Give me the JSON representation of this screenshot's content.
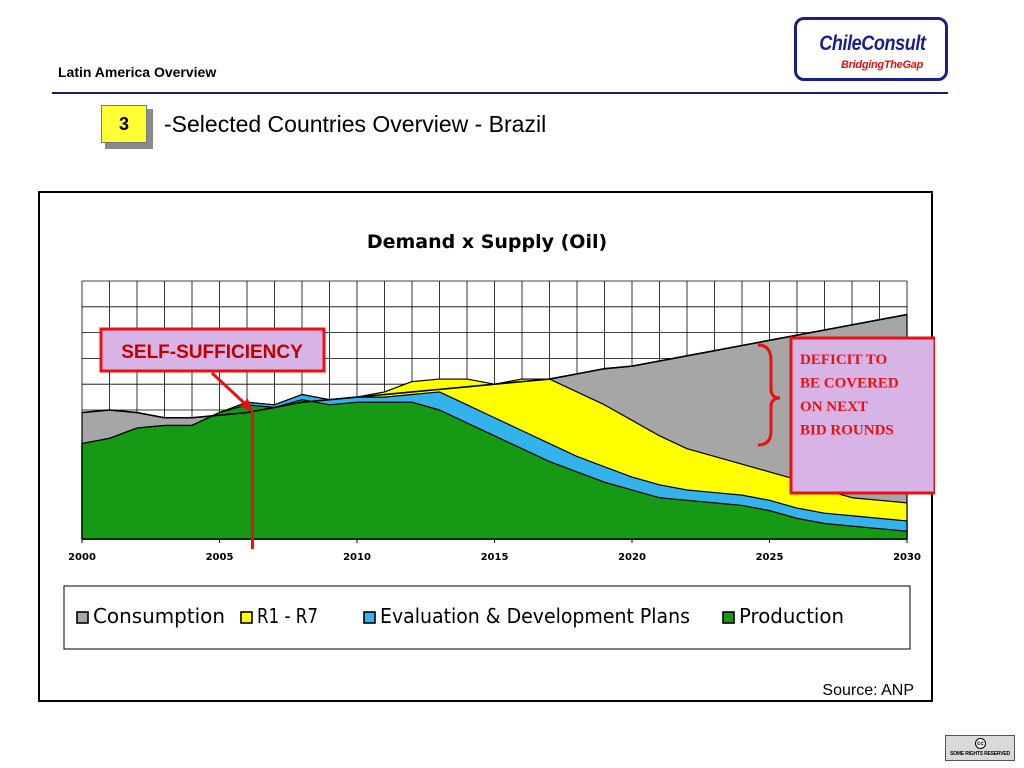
{
  "header": {
    "title": "Latin America Overview"
  },
  "logo": {
    "name": "ChileConsult",
    "tagline": "BridgingTheGap"
  },
  "section": {
    "number": "3",
    "title": "-Selected Countries Overview - Brazil"
  },
  "cc": {
    "icon": "cc",
    "text": "SOME RIGHTS RESERVED"
  },
  "chart_data": {
    "type": "area",
    "title": "Demand x Supply (Oil)",
    "xlabel": "",
    "ylabel": "",
    "xlim": [
      2000,
      2030
    ],
    "ylim": [
      0,
      100
    ],
    "grid": true,
    "legend": "bottom",
    "x_ticks": [
      2000,
      2005,
      2010,
      2015,
      2020,
      2025,
      2030
    ],
    "x": [
      2000,
      2001,
      2002,
      2003,
      2004,
      2005,
      2006,
      2007,
      2008,
      2009,
      2010,
      2011,
      2012,
      2013,
      2014,
      2015,
      2016,
      2017,
      2018,
      2019,
      2020,
      2021,
      2022,
      2023,
      2024,
      2025,
      2026,
      2027,
      2028,
      2029,
      2030
    ],
    "series": [
      {
        "name": "Consumption",
        "color": "#a6a6a6",
        "values": [
          49,
          50,
          49,
          47,
          47,
          48,
          49,
          51,
          53,
          54,
          55,
          56,
          57,
          58,
          59,
          60,
          61,
          62,
          64,
          66,
          67,
          69,
          71,
          73,
          75,
          77,
          79,
          81,
          83,
          85,
          87
        ]
      },
      {
        "name": "R1 - R7",
        "color": "#ffff00",
        "values": [
          37,
          39,
          43,
          44,
          44,
          49,
          53,
          52,
          56,
          54,
          55,
          57,
          61,
          62,
          62,
          60,
          62,
          62,
          57,
          52,
          46,
          40,
          35,
          32,
          29,
          26,
          23,
          19,
          16,
          15,
          14
        ]
      },
      {
        "name": "Evaluation & Development Plans",
        "color": "#33b2ec",
        "values": [
          37,
          39,
          43,
          44,
          44,
          49,
          53,
          52,
          56,
          54,
          55,
          55,
          56,
          57,
          52,
          47,
          42,
          37,
          32,
          28,
          24,
          21,
          19,
          18,
          17,
          15,
          12,
          10,
          9,
          8,
          7
        ]
      },
      {
        "name": "Production",
        "color": "#169a16",
        "values": [
          37,
          39,
          43,
          44,
          44,
          49,
          52,
          51,
          54,
          52,
          53,
          53,
          53,
          50,
          45,
          40,
          35,
          30,
          26,
          22,
          19,
          16,
          15,
          14,
          13,
          11,
          8,
          6,
          5,
          4,
          3
        ]
      }
    ],
    "annotations": {
      "self_sufficiency": {
        "label": "SELF-SUFFICIENCY",
        "year": 2006.2
      },
      "deficit": {
        "label": "DEFICIT TO BE COVERED ON NEXT BID ROUNDS"
      }
    },
    "source": "Source: ANP"
  }
}
